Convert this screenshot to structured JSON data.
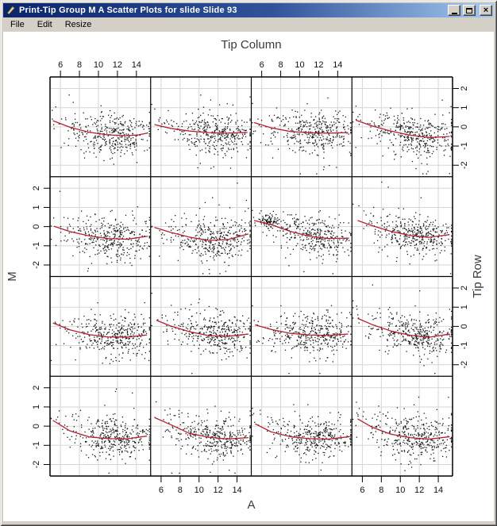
{
  "window": {
    "title": "Print-Tip Group M A Scatter Plots for slide Slide 93",
    "icon": "pen-icon",
    "controls": {
      "minimize": "minimize",
      "maximize": "maximize",
      "close_glyph": "×"
    }
  },
  "menu": {
    "items": [
      {
        "label": "File"
      },
      {
        "label": "Edit"
      },
      {
        "label": "Resize"
      }
    ]
  },
  "colors": {
    "titlebar_left": "#0a246a",
    "titlebar_right": "#a6caf0",
    "frame": "#d4d0c8",
    "canvas": "#ffffff",
    "grid": "#d6d6da",
    "panel_border": "#000000",
    "point": "#161616",
    "curve": "#b22230",
    "axis_text": "#3a3a3a",
    "tick_text": "#111111"
  },
  "chart_data": {
    "type": "scatter",
    "layout": "trellis-lattice",
    "panel_rows": 4,
    "panel_cols": 4,
    "title_top": "Tip Column",
    "xlabel": "A",
    "ylabel": "M",
    "right_label": "Tip Row",
    "x_ticks": [
      6,
      8,
      10,
      12,
      14
    ],
    "y_ticks": [
      -2,
      -1,
      0,
      1,
      2
    ],
    "x_range": [
      4.9,
      15.5
    ],
    "y_range": [
      -2.6,
      2.6
    ],
    "grid": true,
    "tick_sides": {
      "top_columns": [
        1,
        3
      ],
      "bottom_columns": [
        2,
        4
      ],
      "left_rows": [
        2,
        4
      ],
      "right_rows": [
        1,
        3
      ]
    },
    "cloud": {
      "x_main": 12.3,
      "x_main_sd": 1.8,
      "x_sec": 9.3,
      "x_sec_sd": 2.0,
      "sec_weight": 0.25,
      "uniform_weight": 0.06,
      "y_sd": 0.52,
      "outlier_rate": 0.05,
      "outlier_sd": 1.05
    },
    "panels": [
      {
        "row": 1,
        "col": 1,
        "n": 380,
        "seed": 101,
        "curve": [
          [
            5.2,
            0.32
          ],
          [
            7,
            -0.02
          ],
          [
            9,
            -0.28
          ],
          [
            11,
            -0.42
          ],
          [
            13,
            -0.46
          ],
          [
            14.2,
            -0.42
          ],
          [
            15.1,
            -0.33
          ]
        ]
      },
      {
        "row": 1,
        "col": 2,
        "n": 380,
        "seed": 102,
        "curve": [
          [
            5.3,
            0.12
          ],
          [
            7,
            -0.08
          ],
          [
            9,
            -0.22
          ],
          [
            11,
            -0.3
          ],
          [
            13,
            -0.33
          ],
          [
            15.1,
            -0.29
          ]
        ]
      },
      {
        "row": 1,
        "col": 3,
        "n": 390,
        "seed": 103,
        "curve": [
          [
            5.2,
            0.22
          ],
          [
            7,
            -0.05
          ],
          [
            9,
            -0.24
          ],
          [
            11,
            -0.31
          ],
          [
            13,
            -0.33
          ],
          [
            15.1,
            -0.3
          ]
        ]
      },
      {
        "row": 1,
        "col": 4,
        "n": 390,
        "seed": 104,
        "curve": [
          [
            5.3,
            0.35
          ],
          [
            7,
            0.05
          ],
          [
            9,
            -0.22
          ],
          [
            11,
            -0.43
          ],
          [
            13,
            -0.56
          ],
          [
            15.2,
            -0.5
          ]
        ]
      },
      {
        "row": 2,
        "col": 1,
        "n": 370,
        "seed": 105,
        "curve": [
          [
            5.3,
            0.02
          ],
          [
            7,
            -0.26
          ],
          [
            9,
            -0.48
          ],
          [
            11,
            -0.62
          ],
          [
            13,
            -0.66
          ],
          [
            15.2,
            -0.5
          ]
        ]
      },
      {
        "row": 2,
        "col": 2,
        "n": 380,
        "seed": 106,
        "curve": [
          [
            5.3,
            -0.04
          ],
          [
            7,
            -0.3
          ],
          [
            9,
            -0.55
          ],
          [
            11,
            -0.72
          ],
          [
            13,
            -0.68
          ],
          [
            15.2,
            -0.38
          ]
        ]
      },
      {
        "row": 2,
        "col": 3,
        "n": 360,
        "seed": 107,
        "curve": [
          [
            5.2,
            0.32
          ],
          [
            7,
            0.1
          ],
          [
            9,
            -0.25
          ],
          [
            11,
            -0.5
          ],
          [
            13,
            -0.62
          ],
          [
            15.2,
            -0.6
          ]
        ],
        "cluster": {
          "x": 6.7,
          "y": 0.27,
          "sx": 0.55,
          "sy": 0.16,
          "n": 85
        }
      },
      {
        "row": 2,
        "col": 4,
        "n": 380,
        "seed": 108,
        "curve": [
          [
            5.5,
            0.32
          ],
          [
            7,
            0.05
          ],
          [
            9,
            -0.25
          ],
          [
            11,
            -0.46
          ],
          [
            13,
            -0.56
          ],
          [
            15.2,
            -0.42
          ]
        ]
      },
      {
        "row": 3,
        "col": 1,
        "n": 380,
        "seed": 109,
        "curve": [
          [
            5.2,
            0.18
          ],
          [
            7,
            -0.18
          ],
          [
            9,
            -0.43
          ],
          [
            11,
            -0.55
          ],
          [
            13,
            -0.56
          ],
          [
            15.1,
            -0.45
          ]
        ]
      },
      {
        "row": 3,
        "col": 2,
        "n": 390,
        "seed": 110,
        "curve": [
          [
            5.5,
            0.32
          ],
          [
            7,
            0.02
          ],
          [
            9,
            -0.28
          ],
          [
            11,
            -0.48
          ],
          [
            13,
            -0.52
          ],
          [
            15.2,
            -0.4
          ]
        ]
      },
      {
        "row": 3,
        "col": 3,
        "n": 380,
        "seed": 111,
        "curve": [
          [
            5.3,
            0.08
          ],
          [
            7,
            -0.16
          ],
          [
            9,
            -0.36
          ],
          [
            11,
            -0.45
          ],
          [
            13,
            -0.47
          ],
          [
            15.1,
            -0.4
          ]
        ]
      },
      {
        "row": 3,
        "col": 4,
        "n": 390,
        "seed": 112,
        "curve": [
          [
            5.5,
            0.42
          ],
          [
            7,
            0.1
          ],
          [
            9,
            -0.24
          ],
          [
            11,
            -0.46
          ],
          [
            13,
            -0.57
          ],
          [
            15.2,
            -0.4
          ]
        ]
      },
      {
        "row": 4,
        "col": 1,
        "n": 380,
        "seed": 113,
        "curve": [
          [
            5.2,
            0.3
          ],
          [
            7,
            -0.25
          ],
          [
            9,
            -0.56
          ],
          [
            11,
            -0.65
          ],
          [
            13,
            -0.66
          ],
          [
            15.1,
            -0.52
          ]
        ]
      },
      {
        "row": 4,
        "col": 2,
        "n": 390,
        "seed": 114,
        "curve": [
          [
            5.3,
            0.45
          ],
          [
            7,
            0.08
          ],
          [
            9,
            -0.38
          ],
          [
            11,
            -0.58
          ],
          [
            13,
            -0.67
          ],
          [
            15.2,
            -0.6
          ]
        ]
      },
      {
        "row": 4,
        "col": 3,
        "n": 380,
        "seed": 115,
        "curve": [
          [
            5.3,
            0.12
          ],
          [
            7,
            -0.3
          ],
          [
            9,
            -0.55
          ],
          [
            11,
            -0.65
          ],
          [
            13,
            -0.68
          ],
          [
            15.2,
            -0.55
          ]
        ]
      },
      {
        "row": 4,
        "col": 4,
        "n": 390,
        "seed": 116,
        "curve": [
          [
            5.5,
            0.38
          ],
          [
            7,
            -0.05
          ],
          [
            9,
            -0.42
          ],
          [
            11,
            -0.6
          ],
          [
            13,
            -0.68
          ],
          [
            15.2,
            -0.55
          ]
        ]
      }
    ]
  }
}
